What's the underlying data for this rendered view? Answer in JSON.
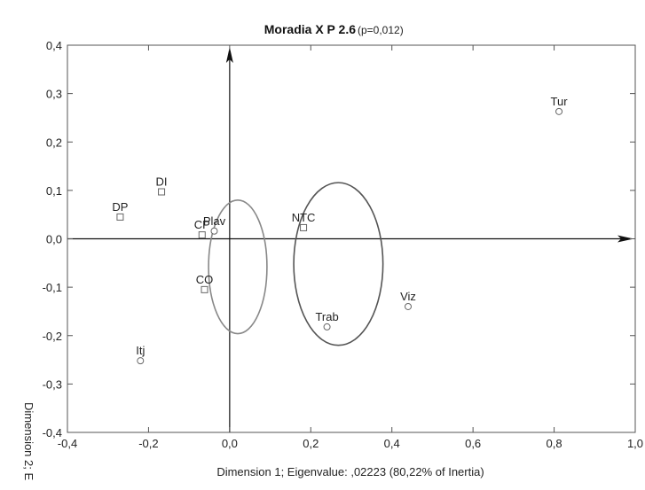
{
  "chart_data": {
    "type": "scatter",
    "title": "Moradia X P 2.6",
    "subtitle": "(p=0,012)",
    "xlabel": "Dimension 1; Eigenvalue: ,02223 (80,22% of Inertia)",
    "ylabel": "Dimension 2; E",
    "xlim": [
      -0.4,
      1.0
    ],
    "ylim": [
      -0.4,
      0.4
    ],
    "xticks": [
      -0.4,
      -0.2,
      0.0,
      0.2,
      0.4,
      0.6,
      0.8,
      1.0
    ],
    "yticks": [
      -0.4,
      -0.3,
      -0.2,
      -0.1,
      0.0,
      0.1,
      0.2,
      0.3,
      0.4
    ],
    "xtick_labels": [
      "-0,4",
      "-0,2",
      "0,0",
      "0,2",
      "0,4",
      "0,6",
      "0,8",
      "1,0"
    ],
    "ytick_labels": [
      "-0,4",
      "-0,3",
      "-0,2",
      "-0,1",
      "0,0",
      "0,1",
      "0,2",
      "0,3",
      "0,4"
    ],
    "grid": false,
    "series": [
      {
        "marker": "square",
        "points": [
          {
            "label": "DP",
            "x": -0.27,
            "y": 0.045
          },
          {
            "label": "DI",
            "x": -0.168,
            "y": 0.097
          },
          {
            "label": "CP",
            "x": -0.068,
            "y": 0.008
          },
          {
            "label": "CO",
            "x": -0.062,
            "y": -0.105
          },
          {
            "label": "NTC",
            "x": 0.182,
            "y": 0.023
          }
        ]
      },
      {
        "marker": "circle",
        "points": [
          {
            "label": "Tur",
            "x": 0.812,
            "y": 0.263
          },
          {
            "label": "Plav",
            "x": -0.038,
            "y": 0.016
          },
          {
            "label": "Viz",
            "x": 0.44,
            "y": -0.14
          },
          {
            "label": "Trab",
            "x": 0.24,
            "y": -0.182
          },
          {
            "label": "Itj",
            "x": -0.22,
            "y": -0.252
          }
        ]
      }
    ],
    "ellipses": [
      {
        "cx": 0.02,
        "cy": -0.058,
        "rx": 0.072,
        "ry": 0.138,
        "color": "#888888"
      },
      {
        "cx": 0.268,
        "cy": -0.052,
        "rx": 0.11,
        "ry": 0.168,
        "color": "#555555"
      }
    ]
  }
}
